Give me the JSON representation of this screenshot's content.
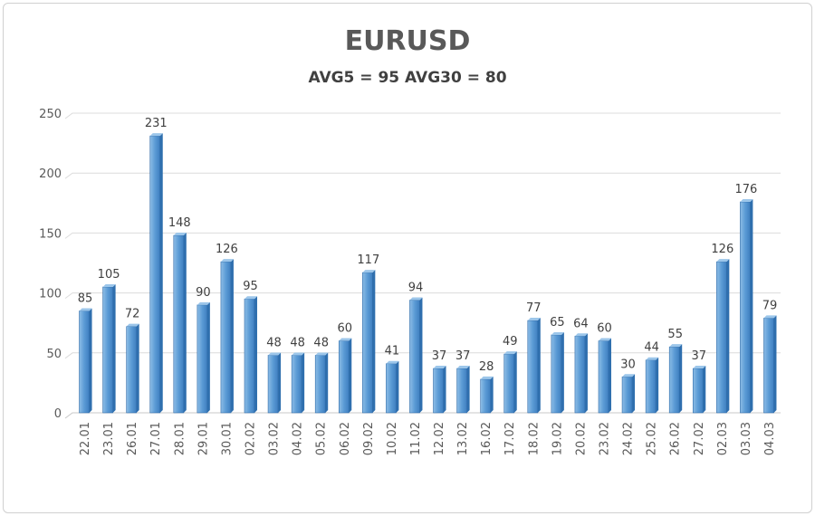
{
  "chart_data": {
    "type": "bar",
    "title": "EURUSD",
    "subtitle": "AVG5 = 95 AVG30 = 80",
    "xlabel": "",
    "ylabel": "",
    "ylim": [
      0,
      250
    ],
    "yticks": [
      0,
      50,
      100,
      150,
      200,
      250
    ],
    "grid": true,
    "legend": "none",
    "bar_color": "#5b9bd5",
    "categories": [
      "22.01",
      "23.01",
      "26.01",
      "27.01",
      "28.01",
      "29.01",
      "30.01",
      "02.02",
      "03.02",
      "04.02",
      "05.02",
      "06.02",
      "09.02",
      "10.02",
      "11.02",
      "12.02",
      "13.02",
      "16.02",
      "17.02",
      "18.02",
      "19.02",
      "20.02",
      "23.02",
      "24.02",
      "25.02",
      "26.02",
      "27.02",
      "02.03",
      "03.03",
      "04.03"
    ],
    "values": [
      85,
      105,
      72,
      231,
      148,
      90,
      126,
      95,
      48,
      48,
      48,
      60,
      117,
      41,
      94,
      37,
      37,
      28,
      49,
      77,
      65,
      64,
      60,
      30,
      44,
      55,
      37,
      126,
      176,
      79
    ]
  }
}
